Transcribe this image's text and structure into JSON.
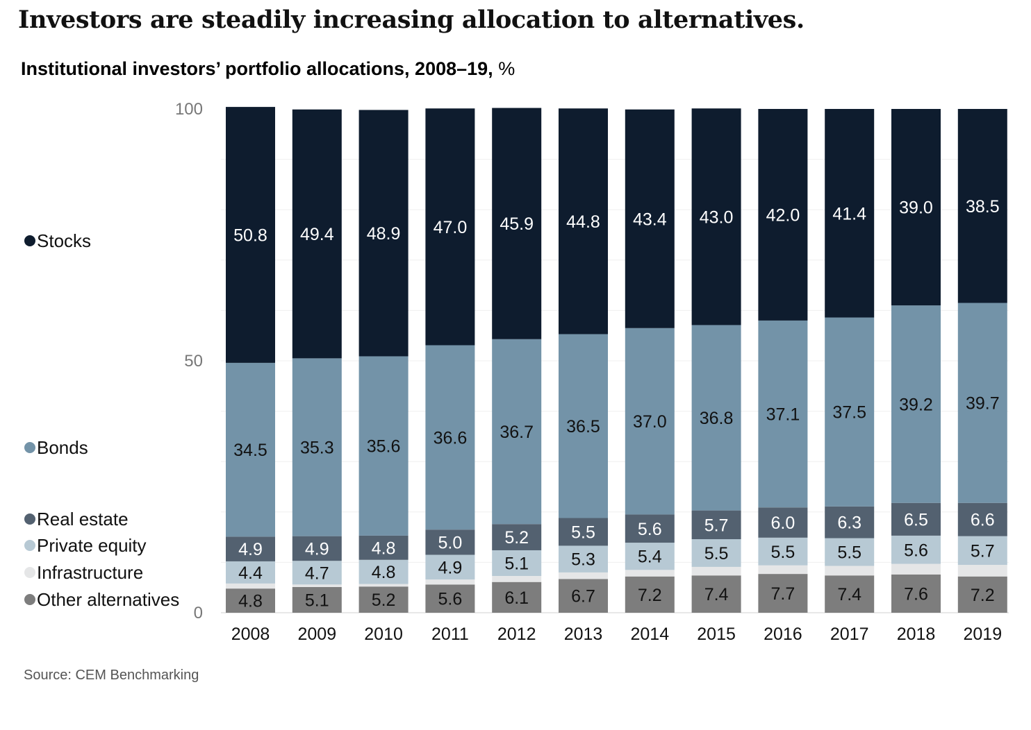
{
  "header": {
    "headline": "Investors are steadily increasing allocation to alternatives.",
    "subtitle_bold": "Institutional investors’ portfolio allocations, 2008–19,",
    "subtitle_unit": "%"
  },
  "footer": {
    "source": "Source: CEM Benchmarking"
  },
  "colors": {
    "stocks": "#0e1c2e",
    "bonds": "#7393a8",
    "real_estate": "#536170",
    "private_equity": "#b7c9d4",
    "infrastructure": "#e5e6e7",
    "other_alternatives": "#7d7d7d"
  },
  "chart_data": {
    "type": "bar",
    "stacked": true,
    "categories": [
      "2008",
      "2009",
      "2010",
      "2011",
      "2012",
      "2013",
      "2014",
      "2015",
      "2016",
      "2017",
      "2018",
      "2019"
    ],
    "ylim": [
      0,
      100
    ],
    "yticks": [
      "0",
      "50",
      "100"
    ],
    "grid": true,
    "legend_position": "left",
    "series": [
      {
        "name": "Other alternatives",
        "key": "other_alternatives",
        "values": [
          4.8,
          5.1,
          5.2,
          5.6,
          6.1,
          6.7,
          7.2,
          7.4,
          7.7,
          7.4,
          7.6,
          7.2
        ],
        "labels": [
          "4.8",
          "5.1",
          "5.2",
          "5.6",
          "6.1",
          "6.7",
          "7.2",
          "7.4",
          "7.7",
          "7.4",
          "7.6",
          "7.2"
        ],
        "label_color": "#111111"
      },
      {
        "name": "Infrastructure",
        "key": "infrastructure",
        "values": [
          1.0,
          0.5,
          0.5,
          1.0,
          1.2,
          1.3,
          1.3,
          1.7,
          1.7,
          1.9,
          2.1,
          2.3
        ],
        "labels": null,
        "label_color": "#111111"
      },
      {
        "name": "Private equity",
        "key": "private_equity",
        "values": [
          4.4,
          4.7,
          4.8,
          4.9,
          5.1,
          5.3,
          5.4,
          5.5,
          5.5,
          5.5,
          5.6,
          5.7
        ],
        "labels": [
          "4.4",
          "4.7",
          "4.8",
          "4.9",
          "5.1",
          "5.3",
          "5.4",
          "5.5",
          "5.5",
          "5.5",
          "5.6",
          "5.7"
        ],
        "label_color": "#111111"
      },
      {
        "name": "Real estate",
        "key": "real_estate",
        "values": [
          4.9,
          4.9,
          4.8,
          5.0,
          5.2,
          5.5,
          5.6,
          5.7,
          6.0,
          6.3,
          6.5,
          6.6
        ],
        "labels": [
          "4.9",
          "4.9",
          "4.8",
          "5.0",
          "5.2",
          "5.5",
          "5.6",
          "5.7",
          "6.0",
          "6.3",
          "6.5",
          "6.6"
        ],
        "label_color": "#ffffff"
      },
      {
        "name": "Bonds",
        "key": "bonds",
        "values": [
          34.5,
          35.3,
          35.6,
          36.6,
          36.7,
          36.5,
          37.0,
          36.8,
          37.1,
          37.5,
          39.2,
          39.7
        ],
        "labels": [
          "34.5",
          "35.3",
          "35.6",
          "36.6",
          "36.7",
          "36.5",
          "37.0",
          "36.8",
          "37.1",
          "37.5",
          "39.2",
          "39.7"
        ],
        "label_color": "#111111"
      },
      {
        "name": "Stocks",
        "key": "stocks",
        "values": [
          50.8,
          49.4,
          48.9,
          47.0,
          45.9,
          44.8,
          43.4,
          43.0,
          42.0,
          41.4,
          39.0,
          38.5
        ],
        "labels": [
          "50.8",
          "49.4",
          "48.9",
          "47.0",
          "45.9",
          "44.8",
          "43.4",
          "43.0",
          "42.0",
          "41.4",
          "39.0",
          "38.5"
        ],
        "label_color": "#ffffff"
      }
    ]
  }
}
